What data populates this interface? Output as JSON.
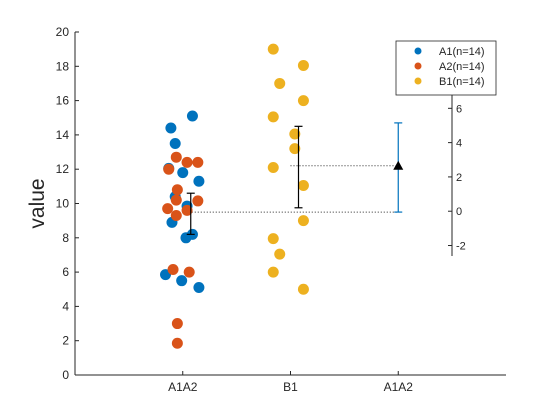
{
  "chart_data": {
    "type": "scatter",
    "title": "",
    "xlabel": "",
    "ylabel": "value",
    "categories": [
      "A1A2",
      "B1",
      "A1A2"
    ],
    "ylim": [
      0,
      20
    ],
    "yticks": [
      0,
      2,
      4,
      6,
      8,
      10,
      12,
      14,
      16,
      18,
      20
    ],
    "right_axis": {
      "zero_at": 9.55,
      "ticks": [
        -2,
        0,
        2,
        4,
        6
      ],
      "ticks_labels": [
        "-2",
        "0",
        "2",
        "4",
        "6"
      ]
    },
    "legend": {
      "placement": "top-right",
      "entries": [
        "A1(n=14)",
        "A2(n=14)",
        "B1(n=14)"
      ]
    },
    "series": [
      {
        "name": "A1(n=14)",
        "color": "#0072BD",
        "points": [
          {
            "x": 0.84,
            "y": 5.85
          },
          {
            "x": 0.87,
            "y": 12.05
          },
          {
            "x": 0.89,
            "y": 14.4
          },
          {
            "x": 0.9,
            "y": 8.9
          },
          {
            "x": 0.93,
            "y": 13.5
          },
          {
            "x": 0.93,
            "y": 10.4
          },
          {
            "x": 0.99,
            "y": 5.5
          },
          {
            "x": 1.0,
            "y": 11.8
          },
          {
            "x": 1.03,
            "y": 8.0
          },
          {
            "x": 1.04,
            "y": 9.85
          },
          {
            "x": 1.09,
            "y": 15.1
          },
          {
            "x": 1.09,
            "y": 8.2
          },
          {
            "x": 1.15,
            "y": 11.3
          },
          {
            "x": 1.15,
            "y": 5.1
          }
        ]
      },
      {
        "name": "A2(n=14)",
        "color": "#D95319",
        "points": [
          {
            "x": 0.86,
            "y": 9.7
          },
          {
            "x": 0.87,
            "y": 12.0
          },
          {
            "x": 0.91,
            "y": 6.15
          },
          {
            "x": 0.94,
            "y": 12.7
          },
          {
            "x": 0.95,
            "y": 10.8
          },
          {
            "x": 0.94,
            "y": 9.3
          },
          {
            "x": 0.94,
            "y": 10.2
          },
          {
            "x": 0.95,
            "y": 3.0
          },
          {
            "x": 0.95,
            "y": 1.85
          },
          {
            "x": 1.04,
            "y": 12.4
          },
          {
            "x": 1.04,
            "y": 9.6
          },
          {
            "x": 1.06,
            "y": 6.0
          },
          {
            "x": 1.14,
            "y": 12.4
          },
          {
            "x": 1.14,
            "y": 10.15
          }
        ]
      },
      {
        "name": "B1(n=14)",
        "color": "#EDB120",
        "points": [
          {
            "x": 1.84,
            "y": 19.0
          },
          {
            "x": 1.84,
            "y": 15.05
          },
          {
            "x": 1.84,
            "y": 12.1
          },
          {
            "x": 1.84,
            "y": 7.95
          },
          {
            "x": 1.84,
            "y": 6.0
          },
          {
            "x": 1.9,
            "y": 17.0
          },
          {
            "x": 1.9,
            "y": 7.05
          },
          {
            "x": 2.04,
            "y": 14.05
          },
          {
            "x": 2.04,
            "y": 13.2
          },
          {
            "x": 2.12,
            "y": 18.05
          },
          {
            "x": 2.12,
            "y": 16.0
          },
          {
            "x": 2.12,
            "y": 11.05
          },
          {
            "x": 2.12,
            "y": 9.0
          },
          {
            "x": 2.12,
            "y": 5.0
          }
        ]
      }
    ],
    "error_bars": [
      {
        "x": 1.0,
        "mean": 9.45,
        "low": 8.2,
        "high": 10.6,
        "color": "#000000"
      },
      {
        "x": 2.0,
        "mean": 12.15,
        "low": 9.75,
        "high": 14.5,
        "color": "#000000"
      }
    ],
    "difference": {
      "x": 3.0,
      "mean": 12.2,
      "low": 9.5,
      "high": 14.7,
      "color": "#0072BD",
      "marker_color": "#000000"
    },
    "reference_lines": [
      9.5,
      12.2
    ],
    "grid": false
  }
}
